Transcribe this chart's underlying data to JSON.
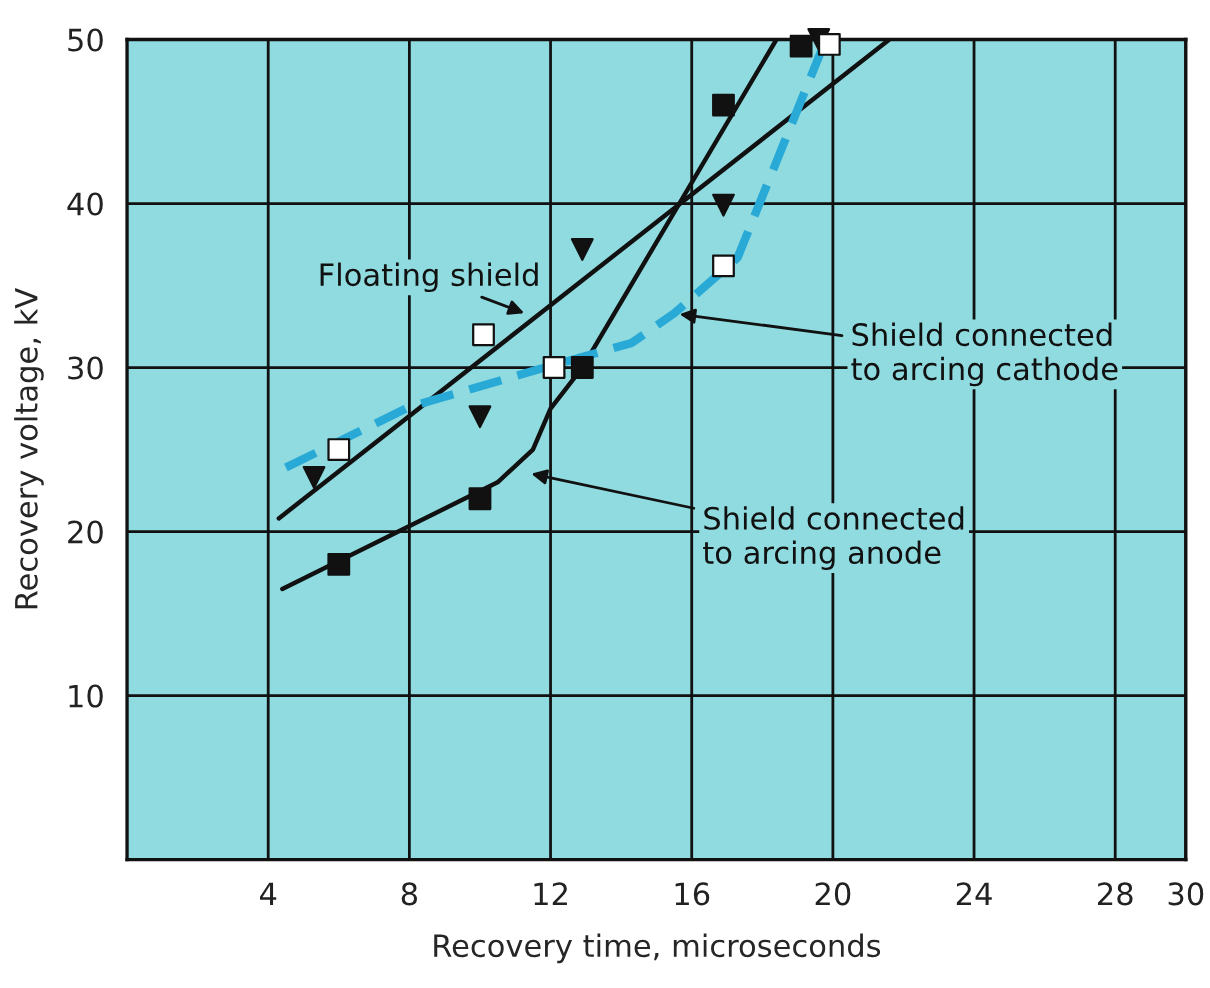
{
  "chart_data": {
    "type": "line",
    "xlabel": "Recovery time, microseconds",
    "ylabel": "Recovery voltage, kV",
    "xlim": [
      0,
      30
    ],
    "xticks": [
      4,
      8,
      12,
      16,
      20,
      24,
      28,
      30
    ],
    "ylim": [
      0,
      50
    ],
    "yticks": [
      10,
      20,
      30,
      40,
      50
    ],
    "grid": true,
    "legend": false,
    "series": [
      {
        "color": "#111111",
        "line_style": "solid",
        "marker": "none",
        "x": [
          4.3,
          21.6
        ],
        "values": [
          20.8,
          50
        ]
      },
      {
        "type": "scatter",
        "color": "#111111",
        "marker": "triangle",
        "x": [
          5.3,
          10.0,
          12.9,
          16.9,
          19.6
        ],
        "values": [
          23.3,
          27.0,
          37.2,
          39.9,
          50
        ]
      },
      {
        "color": "#111111",
        "line_style": "solid",
        "marker": "none",
        "x": [
          4.4,
          10.5,
          11.5,
          12.0,
          12.9,
          18.4
        ],
        "values": [
          16.5,
          23,
          25,
          27.5,
          30,
          50
        ]
      },
      {
        "type": "scatter",
        "color": "#111111",
        "marker": "square",
        "x": [
          6.0,
          10.0,
          12.9,
          16.9,
          19.1
        ],
        "values": [
          18,
          22,
          30,
          46,
          49.6
        ]
      },
      {
        "color": "#29a9d6",
        "line_style": "dashed",
        "marker": "none",
        "x": [
          4.5,
          8,
          12,
          14.3,
          15.5,
          17.3,
          19.8
        ],
        "values": [
          23.9,
          27.6,
          30.1,
          31.5,
          33.3,
          36.7,
          50
        ]
      },
      {
        "type": "scatter",
        "color": "#ffffff",
        "marker": "square",
        "x": [
          6.0,
          10.1,
          12.1,
          16.9,
          19.9
        ],
        "values": [
          25,
          32,
          30,
          36.2,
          49.7
        ]
      }
    ],
    "annotations": [
      {
        "text": "Floating shield",
        "x": 11.4,
        "y": 33.2
      },
      {
        "text": "Shield connected\nto arcing cathode",
        "x": 15.5,
        "y": 33.3
      },
      {
        "text": "Shield connected\nto arcing anode",
        "x": 11.3,
        "y": 23.6
      }
    ]
  }
}
